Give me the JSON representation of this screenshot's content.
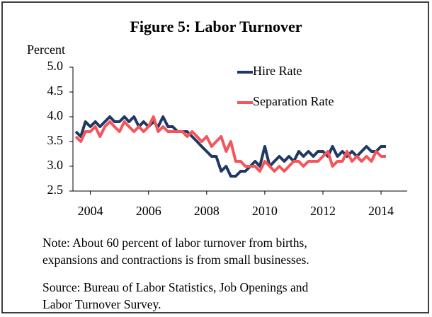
{
  "chart_data": {
    "type": "line",
    "title": "Figure 5: Labor Turnover",
    "ylabel": "Percent",
    "note": [
      "Note: About 60 percent of labor turnover from births,",
      "expansions and contractions is from small businesses."
    ],
    "source": [
      "Source: Bureau of Labor Statistics, Job Openings and",
      "Labor Turnover Survey."
    ],
    "x": [
      2003.5,
      2003.67,
      2003.83,
      2004,
      2004.17,
      2004.33,
      2004.5,
      2004.67,
      2004.83,
      2005,
      2005.17,
      2005.33,
      2005.5,
      2005.67,
      2005.83,
      2006,
      2006.17,
      2006.33,
      2006.5,
      2006.67,
      2006.83,
      2007,
      2007.17,
      2007.33,
      2007.5,
      2007.67,
      2007.83,
      2008,
      2008.17,
      2008.33,
      2008.5,
      2008.67,
      2008.83,
      2009,
      2009.17,
      2009.33,
      2009.5,
      2009.67,
      2009.83,
      2010,
      2010.17,
      2010.33,
      2010.5,
      2010.67,
      2010.83,
      2011,
      2011.17,
      2011.33,
      2011.5,
      2011.67,
      2011.83,
      2012,
      2012.17,
      2012.33,
      2012.5,
      2012.67,
      2012.83,
      2013,
      2013.17,
      2013.33,
      2013.5,
      2013.67,
      2013.83,
      2014,
      2014.17
    ],
    "series": [
      {
        "name": "Hire Rate",
        "color": "#1f3864",
        "values": [
          3.7,
          3.6,
          3.9,
          3.8,
          3.9,
          3.8,
          3.9,
          4.0,
          3.9,
          3.9,
          4.0,
          3.9,
          4.0,
          3.8,
          3.9,
          3.8,
          3.9,
          3.8,
          4.0,
          3.8,
          3.8,
          3.7,
          3.7,
          3.7,
          3.6,
          3.5,
          3.4,
          3.3,
          3.2,
          3.2,
          2.9,
          3.0,
          2.8,
          2.8,
          2.9,
          2.9,
          3.0,
          3.1,
          3.0,
          3.4,
          3.0,
          3.1,
          3.2,
          3.1,
          3.2,
          3.1,
          3.3,
          3.2,
          3.3,
          3.2,
          3.3,
          3.3,
          3.2,
          3.4,
          3.2,
          3.3,
          3.2,
          3.3,
          3.2,
          3.3,
          3.4,
          3.3,
          3.3,
          3.4,
          3.4
        ]
      },
      {
        "name": "Separation Rate",
        "color": "#f4555a",
        "values": [
          3.6,
          3.5,
          3.7,
          3.7,
          3.8,
          3.6,
          3.8,
          3.9,
          3.8,
          3.7,
          3.9,
          3.8,
          3.7,
          3.8,
          3.7,
          3.8,
          4.0,
          3.7,
          3.8,
          3.7,
          3.7,
          3.7,
          3.7,
          3.6,
          3.7,
          3.6,
          3.5,
          3.6,
          3.4,
          3.5,
          3.6,
          3.3,
          3.5,
          3.1,
          3.1,
          3.0,
          3.0,
          3.0,
          2.9,
          3.1,
          3.0,
          2.9,
          3.0,
          2.9,
          3.0,
          3.1,
          3.1,
          3.0,
          3.1,
          3.1,
          3.1,
          3.2,
          3.3,
          3.0,
          3.1,
          3.1,
          3.3,
          3.1,
          3.2,
          3.1,
          3.2,
          3.1,
          3.3,
          3.2,
          3.2
        ]
      }
    ],
    "xlim": [
      2003.4,
      2014.9
    ],
    "xticks": [
      2004,
      2006,
      2008,
      2010,
      2012,
      2014
    ],
    "ylim": [
      2.5,
      5.0
    ],
    "yticks": [
      2.5,
      {
        "value": 3.0,
        "label": "3.0"
      },
      3.5,
      {
        "value": 4.0,
        "label": "4.0"
      },
      4.5,
      {
        "value": 5.0,
        "label": "5.0"
      }
    ],
    "legend": "top-right",
    "grid": false
  }
}
